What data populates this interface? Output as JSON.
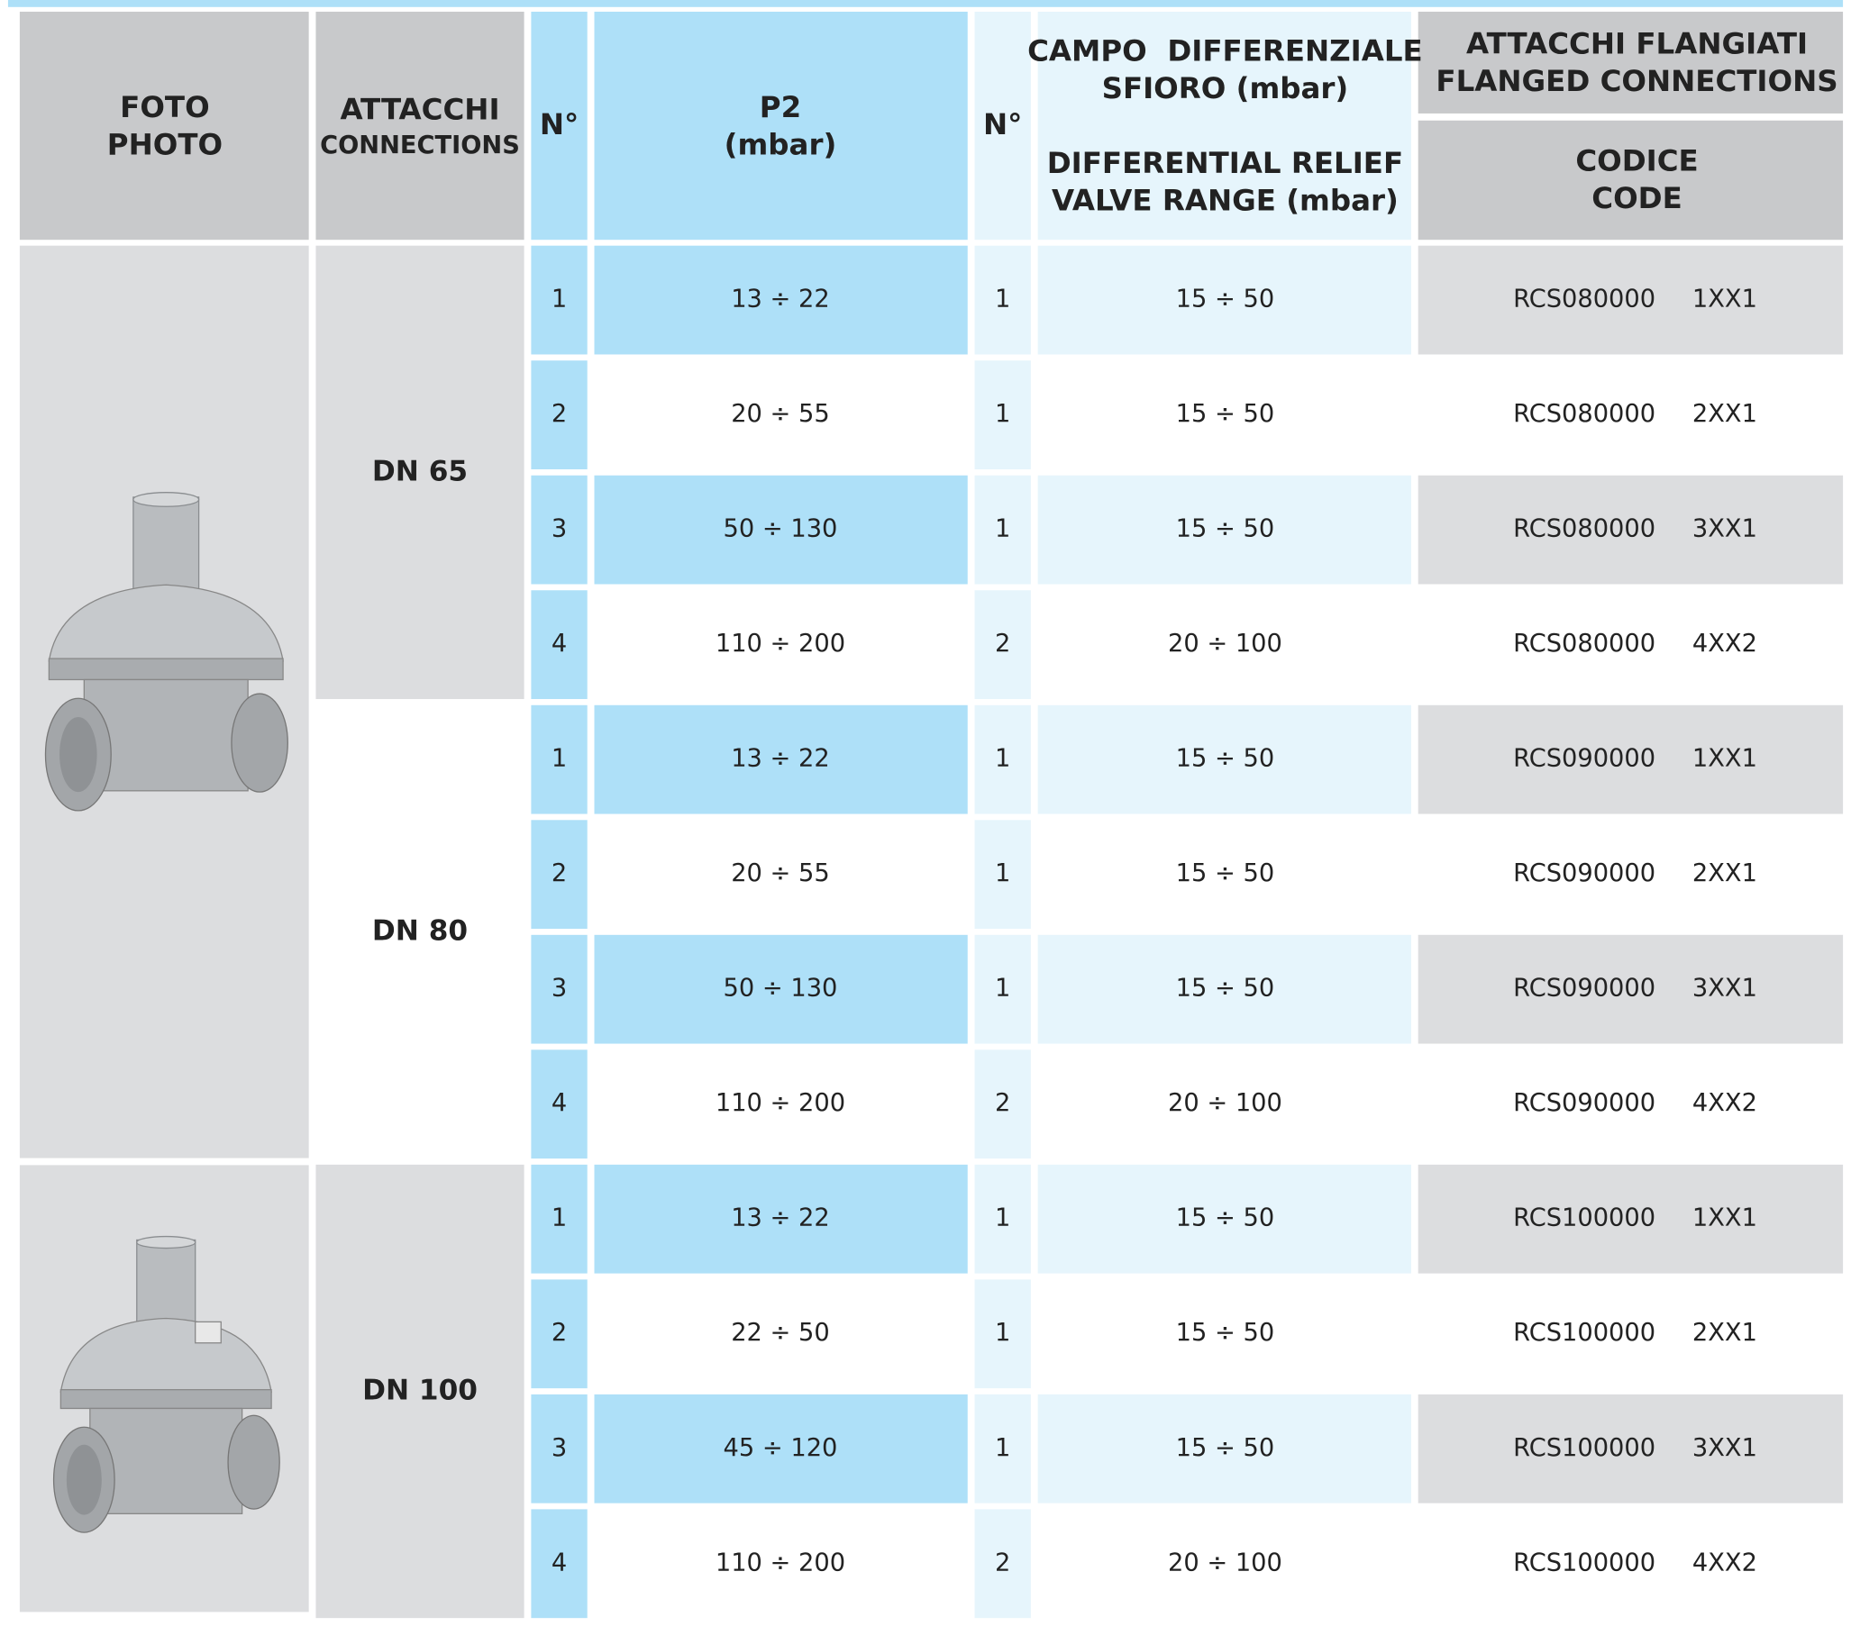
{
  "header": {
    "photo": [
      "FOTO",
      "PHOTO"
    ],
    "connections": [
      "ATTACCHI",
      "CONNECTIONS"
    ],
    "n1": "N°",
    "p2": [
      "P2",
      "(mbar)"
    ],
    "n2": "N°",
    "relief": [
      "CAMPO  DIFFERENZIALE",
      "SFIORO (mbar)",
      "DIFFERENTIAL RELIEF",
      "VALVE RANGE (mbar)"
    ],
    "flanged": [
      "ATTACCHI FLANGIATI",
      "FLANGED CONNECTIONS"
    ],
    "code": [
      "CODICE",
      "CODE"
    ]
  },
  "groups": [
    {
      "connection": "DN 65",
      "rows": [
        [
          "1",
          "13 ÷ 22",
          "1",
          "15 ÷ 50",
          "RCS080000",
          "1XX1"
        ],
        [
          "2",
          "20 ÷ 55",
          "1",
          "15 ÷ 50",
          "RCS080000",
          "2XX1"
        ],
        [
          "3",
          "50 ÷ 130",
          "1",
          "15 ÷ 50",
          "RCS080000",
          "3XX1"
        ],
        [
          "4",
          "110 ÷ 200",
          "2",
          "20 ÷ 100",
          "RCS080000",
          "4XX2"
        ]
      ]
    },
    {
      "connection": "DN 80",
      "rows": [
        [
          "1",
          "13 ÷ 22",
          "1",
          "15 ÷ 50",
          "RCS090000",
          "1XX1"
        ],
        [
          "2",
          "20 ÷ 55",
          "1",
          "15 ÷ 50",
          "RCS090000",
          "2XX1"
        ],
        [
          "3",
          "50 ÷ 130",
          "1",
          "15 ÷ 50",
          "RCS090000",
          "3XX1"
        ],
        [
          "4",
          "110 ÷ 200",
          "2",
          "20 ÷ 100",
          "RCS090000",
          "4XX2"
        ]
      ]
    },
    {
      "connection": "DN 100",
      "rows": [
        [
          "1",
          "13 ÷ 22",
          "1",
          "15 ÷ 50",
          "RCS100000",
          "1XX1"
        ],
        [
          "2",
          "22 ÷ 50",
          "1",
          "15 ÷ 50",
          "RCS100000",
          "2XX1"
        ],
        [
          "3",
          "45 ÷ 120",
          "1",
          "15 ÷ 50",
          "RCS100000",
          "3XX1"
        ],
        [
          "4",
          "110 ÷ 200",
          "2",
          "20 ÷ 100",
          "RCS100000",
          "4XX2"
        ]
      ]
    }
  ]
}
